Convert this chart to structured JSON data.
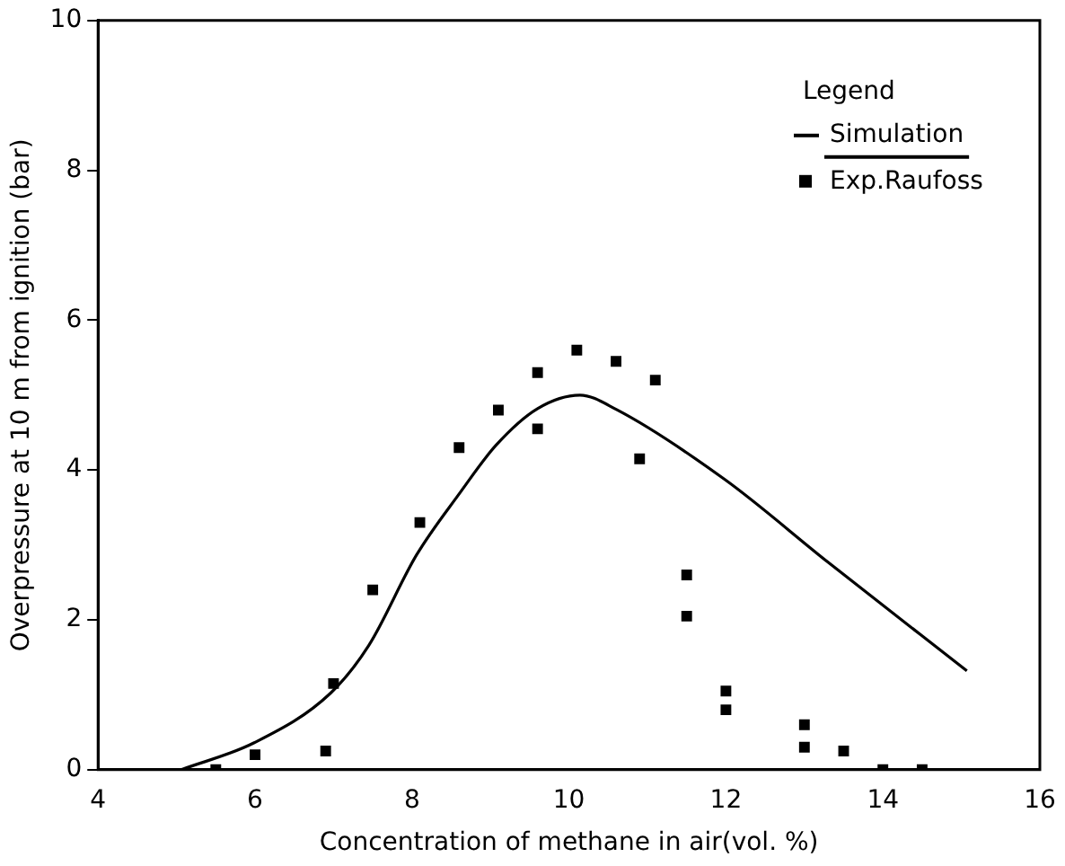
{
  "chart_data": {
    "type": "scatter",
    "xlabel": "Concentration of methane in air(vol. %)",
    "ylabel": "Overpressure at 10 m from ignition (bar)",
    "legend_title": "Legend",
    "legend": "top right",
    "grid": false,
    "xlim": [
      4,
      16
    ],
    "xticks": [
      4,
      6,
      8,
      10,
      12,
      14,
      16
    ],
    "ylim": [
      0,
      10
    ],
    "yticks": [
      0,
      2,
      4,
      6,
      8,
      10
    ],
    "series": [
      {
        "name": "Simulation",
        "type": "line",
        "color": "#000000",
        "marker": "none",
        "x": [
          5.06,
          5.99,
          6.96,
          7.45,
          8.06,
          8.6,
          9.07,
          9.6,
          10.14,
          10.6,
          11.99,
          13.3,
          15.07
        ],
        "values": [
          0,
          0.36,
          1.02,
          1.66,
          2.87,
          3.68,
          4.33,
          4.82,
          5.0,
          4.81,
          3.87,
          2.77,
          1.32
        ]
      },
      {
        "name": "Exp.Raufoss",
        "color": "#000000",
        "marker": "square",
        "x": [
          5.5,
          6.0,
          7.0,
          6.9,
          7.5,
          8.1,
          8.6,
          9.1,
          9.6,
          9.6,
          10.1,
          10.6,
          11.1,
          10.9,
          11.5,
          11.5,
          12.0,
          12.0,
          13.0,
          13.0,
          13.5,
          14.0,
          14.5
        ],
        "values": [
          0,
          0.2,
          1.15,
          0.25,
          2.4,
          3.3,
          4.3,
          4.8,
          5.3,
          4.55,
          5.6,
          5.45,
          5.2,
          4.15,
          2.6,
          2.05,
          1.05,
          0.8,
          0.6,
          0.3,
          0.25,
          0,
          0
        ]
      }
    ]
  }
}
